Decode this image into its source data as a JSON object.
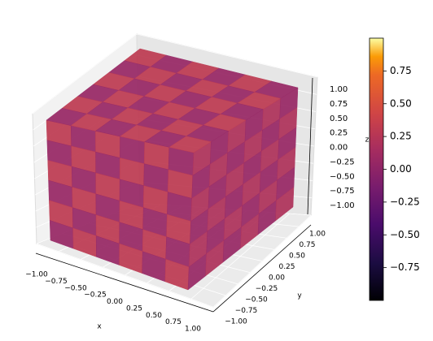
{
  "chart_data": {
    "type": "volume3d",
    "colormap": "inferno",
    "clim": [
      -1,
      1
    ],
    "xlabel": "x",
    "ylabel": "y",
    "zlabel": "z",
    "xlim": [
      -1,
      1
    ],
    "ylim": [
      -1,
      1
    ],
    "zlim": [
      -1,
      1
    ],
    "xticks": [
      {
        "value": -1,
        "label": "−1.00"
      },
      {
        "value": -0.75,
        "label": "−0.75"
      },
      {
        "value": -0.5,
        "label": "−0.50"
      },
      {
        "value": -0.25,
        "label": "−0.25"
      },
      {
        "value": 0,
        "label": "0.00"
      },
      {
        "value": 0.25,
        "label": "0.25"
      },
      {
        "value": 0.5,
        "label": "0.50"
      },
      {
        "value": 0.75,
        "label": "0.75"
      },
      {
        "value": 1,
        "label": "1.00"
      }
    ],
    "yticks": [
      {
        "value": -1,
        "label": "−1.00"
      },
      {
        "value": -0.75,
        "label": "−0.75"
      },
      {
        "value": -0.5,
        "label": "−0.50"
      },
      {
        "value": -0.25,
        "label": "−0.25"
      },
      {
        "value": 0,
        "label": "0.00"
      },
      {
        "value": 0.25,
        "label": "0.25"
      },
      {
        "value": 0.5,
        "label": "0.50"
      },
      {
        "value": 0.75,
        "label": "0.75"
      },
      {
        "value": 1,
        "label": "1.00"
      }
    ],
    "zticks": [
      {
        "value": -1,
        "label": "−1.00"
      },
      {
        "value": -0.75,
        "label": "−0.75"
      },
      {
        "value": -0.5,
        "label": "−0.50"
      },
      {
        "value": -0.25,
        "label": "−0.25"
      },
      {
        "value": 0,
        "label": "0.00"
      },
      {
        "value": 0.25,
        "label": "0.25"
      },
      {
        "value": 0.5,
        "label": "0.50"
      },
      {
        "value": 0.75,
        "label": "0.75"
      },
      {
        "value": 1,
        "label": "1.00"
      }
    ],
    "colorbar_ticks": [
      {
        "value": -0.75,
        "label": "−0.75"
      },
      {
        "value": -0.5,
        "label": "−0.50"
      },
      {
        "value": -0.25,
        "label": "−0.25"
      },
      {
        "value": 0,
        "label": "0.00"
      },
      {
        "value": 0.25,
        "label": "0.25"
      },
      {
        "value": 0.5,
        "label": "0.50"
      },
      {
        "value": 0.75,
        "label": "0.75"
      }
    ],
    "faces": [
      {
        "name": "front",
        "values": [
          [
            0.3,
            0.05,
            0.3,
            0.05,
            0.3,
            0.05
          ],
          [
            0.05,
            0.3,
            0.05,
            0.3,
            0.05,
            0.3
          ],
          [
            0.3,
            0.05,
            0.3,
            0.05,
            0.3,
            0.05
          ],
          [
            0.05,
            0.3,
            0.05,
            0.3,
            0.05,
            0.3
          ],
          [
            0.3,
            0.05,
            0.3,
            0.05,
            0.3,
            0.05
          ],
          [
            0.05,
            0.3,
            0.05,
            0.3,
            0.05,
            0.3
          ]
        ]
      },
      {
        "name": "right",
        "values": [
          [
            0.2,
            0.05,
            0.2,
            0.05,
            0.2,
            0.05
          ],
          [
            0.05,
            0.2,
            0.05,
            0.2,
            0.05,
            0.2
          ],
          [
            0.2,
            0.05,
            0.2,
            0.05,
            0.2,
            0.05
          ],
          [
            0.05,
            0.2,
            0.05,
            0.2,
            0.05,
            0.2
          ],
          [
            0.2,
            0.05,
            0.2,
            0.05,
            0.2,
            0.05
          ],
          [
            0.05,
            0.2,
            0.05,
            0.2,
            0.05,
            0.2
          ]
        ]
      },
      {
        "name": "top",
        "values": [
          [
            0.3,
            0.05,
            0.3,
            0.05,
            0.3,
            0.05
          ],
          [
            0.05,
            0.3,
            0.05,
            0.3,
            0.05,
            0.3
          ],
          [
            0.3,
            0.05,
            0.3,
            0.05,
            0.3,
            0.05
          ],
          [
            0.05,
            0.3,
            0.05,
            0.3,
            0.05,
            0.3
          ],
          [
            0.3,
            0.05,
            0.3,
            0.05,
            0.3,
            0.05
          ],
          [
            0.05,
            0.3,
            0.05,
            0.3,
            0.05,
            0.3
          ]
        ]
      }
    ]
  }
}
